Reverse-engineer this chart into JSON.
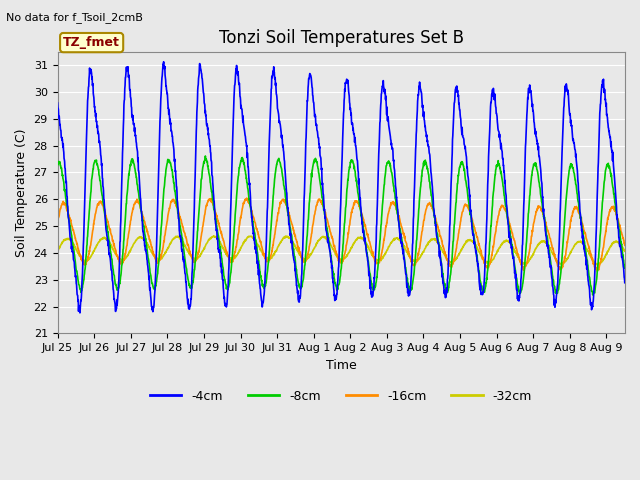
{
  "title": "Tonzi Soil Temperatures Set B",
  "xlabel": "Time",
  "ylabel": "Soil Temperature (C)",
  "note": "No data for f_Tsoil_2cmB",
  "legend_label": "TZ_fmet",
  "series_labels": [
    "-4cm",
    "-8cm",
    "-16cm",
    "-32cm"
  ],
  "series_colors": [
    "#0000ff",
    "#00cc00",
    "#ff8c00",
    "#cccc00"
  ],
  "ylim": [
    21.0,
    31.5
  ],
  "yticks": [
    21.0,
    22.0,
    23.0,
    24.0,
    25.0,
    26.0,
    27.0,
    28.0,
    29.0,
    30.0,
    31.0
  ],
  "xtick_labels": [
    "Jul 25",
    "Jul 26",
    "Jul 27",
    "Jul 28",
    "Jul 29",
    "Jul 30",
    "Jul 31",
    "Aug 1",
    "Aug 2",
    "Aug 3",
    "Aug 4",
    "Aug 5",
    "Aug 6",
    "Aug 7",
    "Aug 8",
    "Aug 9"
  ],
  "n_days": 15.5,
  "background_color": "#e8e8e8",
  "plot_bg_color": "#e8e8e8",
  "grid_color": "#ffffff",
  "title_fontsize": 12,
  "axis_label_fontsize": 9,
  "tick_fontsize": 8,
  "note_fontsize": 8,
  "legend_fontsize": 9,
  "linewidth": 1.2
}
